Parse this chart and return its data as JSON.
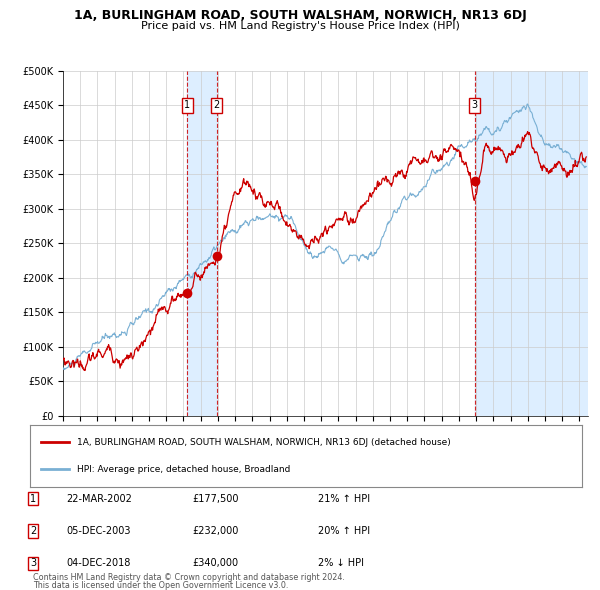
{
  "title": "1A, BURLINGHAM ROAD, SOUTH WALSHAM, NORWICH, NR13 6DJ",
  "subtitle": "Price paid vs. HM Land Registry's House Price Index (HPI)",
  "legend_line1": "1A, BURLINGHAM ROAD, SOUTH WALSHAM, NORWICH, NR13 6DJ (detached house)",
  "legend_line2": "HPI: Average price, detached house, Broadland",
  "transactions": [
    {
      "num": 1,
      "date": "22-MAR-2002",
      "price": 177500,
      "pct": "21%",
      "dir": "↑",
      "year_float": 2002.22
    },
    {
      "num": 2,
      "date": "05-DEC-2003",
      "price": 232000,
      "pct": "20%",
      "dir": "↑",
      "year_float": 2003.92
    },
    {
      "num": 3,
      "date": "04-DEC-2018",
      "price": 340000,
      "pct": "2%",
      "dir": "↓",
      "year_float": 2018.92
    }
  ],
  "shade1_x0": 2002.22,
  "shade1_x1": 2003.92,
  "shade2_x0": 2018.92,
  "shade2_x1": 2025.5,
  "red_line_color": "#cc0000",
  "blue_line_color": "#7ab0d4",
  "dot_color": "#cc0000",
  "vline_color": "#cc0000",
  "shade_color": "#ddeeff",
  "grid_color": "#cccccc",
  "background_color": "#ffffff",
  "ylim": [
    0,
    500000
  ],
  "xlim": [
    1995.0,
    2025.5
  ],
  "footnote1": "Contains HM Land Registry data © Crown copyright and database right 2024.",
  "footnote2": "This data is licensed under the Open Government Licence v3.0."
}
